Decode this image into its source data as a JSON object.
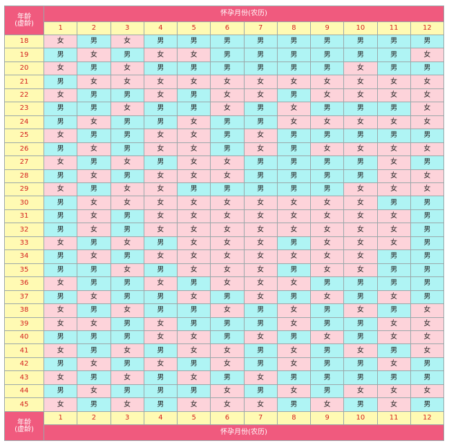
{
  "header": {
    "age_label_line1": "年龄",
    "age_label_line2": "(虚龄)",
    "title": "怀孕月份(农历)"
  },
  "months": [
    "1",
    "2",
    "3",
    "4",
    "5",
    "6",
    "7",
    "8",
    "9",
    "10",
    "11",
    "12"
  ],
  "legend": {
    "boy": "男",
    "girl": "女"
  },
  "colors": {
    "header_bg": "#f05a7e",
    "label_bg": "#fffab3",
    "label_text": "#d42020",
    "boy_bg": "#aff4f4",
    "girl_bg": "#fdd3da"
  },
  "rows": [
    {
      "age": "18",
      "cells": [
        "女",
        "男",
        "女",
        "男",
        "男",
        "男",
        "男",
        "男",
        "男",
        "男",
        "男",
        "男"
      ]
    },
    {
      "age": "19",
      "cells": [
        "男",
        "女",
        "男",
        "女",
        "女",
        "男",
        "男",
        "男",
        "男",
        "男",
        "男",
        "女"
      ]
    },
    {
      "age": "20",
      "cells": [
        "女",
        "男",
        "女",
        "男",
        "男",
        "男",
        "男",
        "男",
        "男",
        "女",
        "男",
        "男"
      ]
    },
    {
      "age": "21",
      "cells": [
        "男",
        "女",
        "女",
        "女",
        "女",
        "女",
        "女",
        "女",
        "女",
        "女",
        "女",
        "女"
      ]
    },
    {
      "age": "22",
      "cells": [
        "女",
        "男",
        "男",
        "女",
        "男",
        "女",
        "女",
        "男",
        "女",
        "女",
        "女",
        "女"
      ]
    },
    {
      "age": "23",
      "cells": [
        "男",
        "男",
        "女",
        "男",
        "男",
        "女",
        "男",
        "女",
        "男",
        "男",
        "男",
        "女"
      ]
    },
    {
      "age": "24",
      "cells": [
        "男",
        "女",
        "男",
        "男",
        "女",
        "男",
        "男",
        "女",
        "女",
        "女",
        "女",
        "女"
      ]
    },
    {
      "age": "25",
      "cells": [
        "女",
        "男",
        "男",
        "女",
        "女",
        "男",
        "女",
        "男",
        "男",
        "男",
        "男",
        "男"
      ]
    },
    {
      "age": "26",
      "cells": [
        "男",
        "女",
        "男",
        "女",
        "女",
        "男",
        "女",
        "男",
        "女",
        "女",
        "女",
        "女"
      ]
    },
    {
      "age": "27",
      "cells": [
        "女",
        "男",
        "女",
        "男",
        "女",
        "女",
        "男",
        "男",
        "男",
        "男",
        "女",
        "男"
      ]
    },
    {
      "age": "28",
      "cells": [
        "男",
        "女",
        "男",
        "女",
        "女",
        "女",
        "男",
        "男",
        "男",
        "男",
        "女",
        "女"
      ]
    },
    {
      "age": "29",
      "cells": [
        "女",
        "男",
        "女",
        "女",
        "男",
        "男",
        "男",
        "男",
        "男",
        "女",
        "女",
        "女"
      ]
    },
    {
      "age": "30",
      "cells": [
        "男",
        "女",
        "女",
        "女",
        "女",
        "女",
        "女",
        "女",
        "女",
        "女",
        "男",
        "男"
      ]
    },
    {
      "age": "31",
      "cells": [
        "男",
        "女",
        "男",
        "女",
        "女",
        "女",
        "女",
        "女",
        "女",
        "女",
        "女",
        "男"
      ]
    },
    {
      "age": "32",
      "cells": [
        "男",
        "女",
        "男",
        "女",
        "女",
        "女",
        "女",
        "女",
        "女",
        "女",
        "女",
        "男"
      ]
    },
    {
      "age": "33",
      "cells": [
        "女",
        "男",
        "女",
        "男",
        "女",
        "女",
        "女",
        "男",
        "女",
        "女",
        "女",
        "男"
      ]
    },
    {
      "age": "34",
      "cells": [
        "男",
        "女",
        "男",
        "女",
        "女",
        "女",
        "女",
        "女",
        "女",
        "女",
        "男",
        "男"
      ]
    },
    {
      "age": "35",
      "cells": [
        "男",
        "男",
        "女",
        "男",
        "女",
        "女",
        "女",
        "男",
        "女",
        "女",
        "男",
        "男"
      ]
    },
    {
      "age": "36",
      "cells": [
        "女",
        "男",
        "男",
        "女",
        "男",
        "女",
        "女",
        "女",
        "男",
        "男",
        "男",
        "男"
      ]
    },
    {
      "age": "37",
      "cells": [
        "男",
        "女",
        "男",
        "男",
        "女",
        "男",
        "女",
        "男",
        "女",
        "男",
        "女",
        "男"
      ]
    },
    {
      "age": "38",
      "cells": [
        "女",
        "男",
        "女",
        "男",
        "男",
        "女",
        "男",
        "女",
        "男",
        "女",
        "男",
        "女"
      ]
    },
    {
      "age": "39",
      "cells": [
        "女",
        "女",
        "男",
        "女",
        "男",
        "男",
        "男",
        "女",
        "男",
        "男",
        "女",
        "女"
      ]
    },
    {
      "age": "40",
      "cells": [
        "男",
        "男",
        "男",
        "女",
        "女",
        "男",
        "女",
        "男",
        "女",
        "男",
        "女",
        "女"
      ]
    },
    {
      "age": "41",
      "cells": [
        "女",
        "男",
        "女",
        "男",
        "女",
        "女",
        "男",
        "女",
        "男",
        "女",
        "男",
        "女"
      ]
    },
    {
      "age": "42",
      "cells": [
        "男",
        "女",
        "男",
        "女",
        "男",
        "女",
        "男",
        "女",
        "男",
        "男",
        "女",
        "男"
      ]
    },
    {
      "age": "43",
      "cells": [
        "女",
        "男",
        "女",
        "男",
        "女",
        "男",
        "女",
        "男",
        "男",
        "男",
        "男",
        "男"
      ]
    },
    {
      "age": "44",
      "cells": [
        "男",
        "女",
        "男",
        "男",
        "男",
        "女",
        "男",
        "女",
        "男",
        "女",
        "女",
        "女"
      ]
    },
    {
      "age": "45",
      "cells": [
        "女",
        "男",
        "女",
        "男",
        "女",
        "女",
        "女",
        "男",
        "女",
        "男",
        "女",
        "男"
      ]
    }
  ]
}
